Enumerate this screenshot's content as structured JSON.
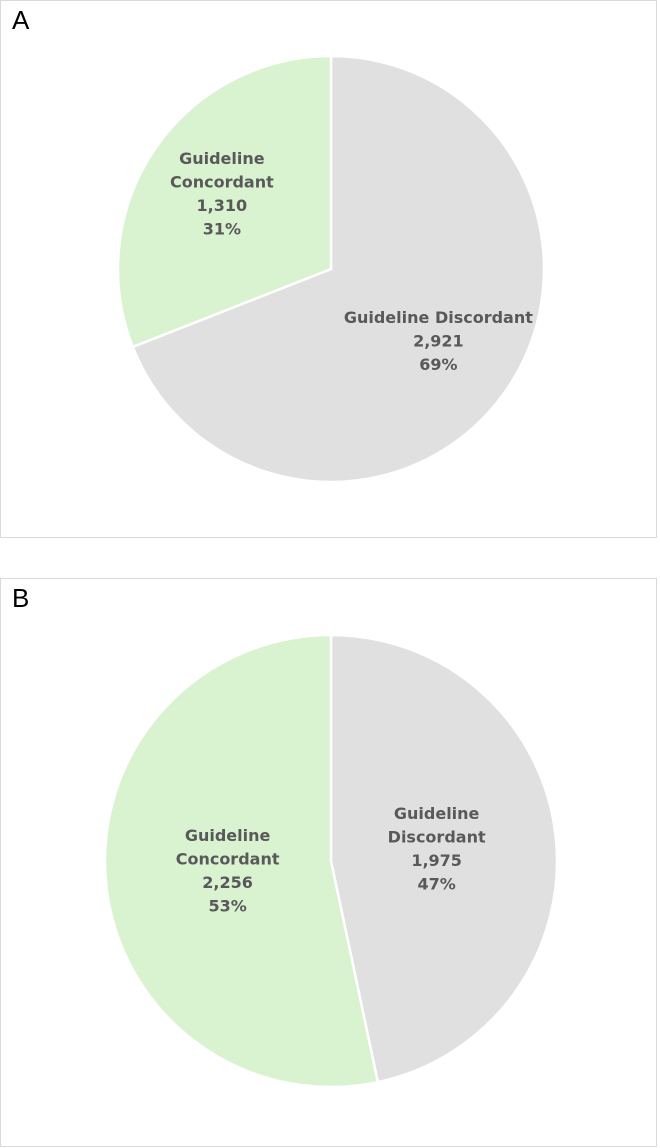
{
  "chart_data": [
    {
      "type": "pie",
      "panel_label": "A",
      "slices": [
        {
          "name": "Guideline Discordant",
          "lines": [
            "Guideline Discordant"
          ],
          "count": 2921,
          "count_label": "2,921",
          "percent": 69,
          "percent_label": "69%",
          "color": "#e0e0e0"
        },
        {
          "name": "Guideline Concordant",
          "lines": [
            "Guideline",
            "Concordant"
          ],
          "count": 1310,
          "count_label": "1,310",
          "percent": 31,
          "percent_label": "31%",
          "color": "#d9f2d0"
        }
      ]
    },
    {
      "type": "pie",
      "panel_label": "B",
      "slices": [
        {
          "name": "Guideline Discordant",
          "lines": [
            "Guideline",
            "Discordant"
          ],
          "count": 1975,
          "count_label": "1,975",
          "percent": 47,
          "percent_label": "47%",
          "color": "#e0e0e0"
        },
        {
          "name": "Guideline Concordant",
          "lines": [
            "Guideline",
            "Concordant"
          ],
          "count": 2256,
          "count_label": "2,256",
          "percent": 53,
          "percent_label": "53%",
          "color": "#d9f2d0"
        }
      ]
    }
  ]
}
